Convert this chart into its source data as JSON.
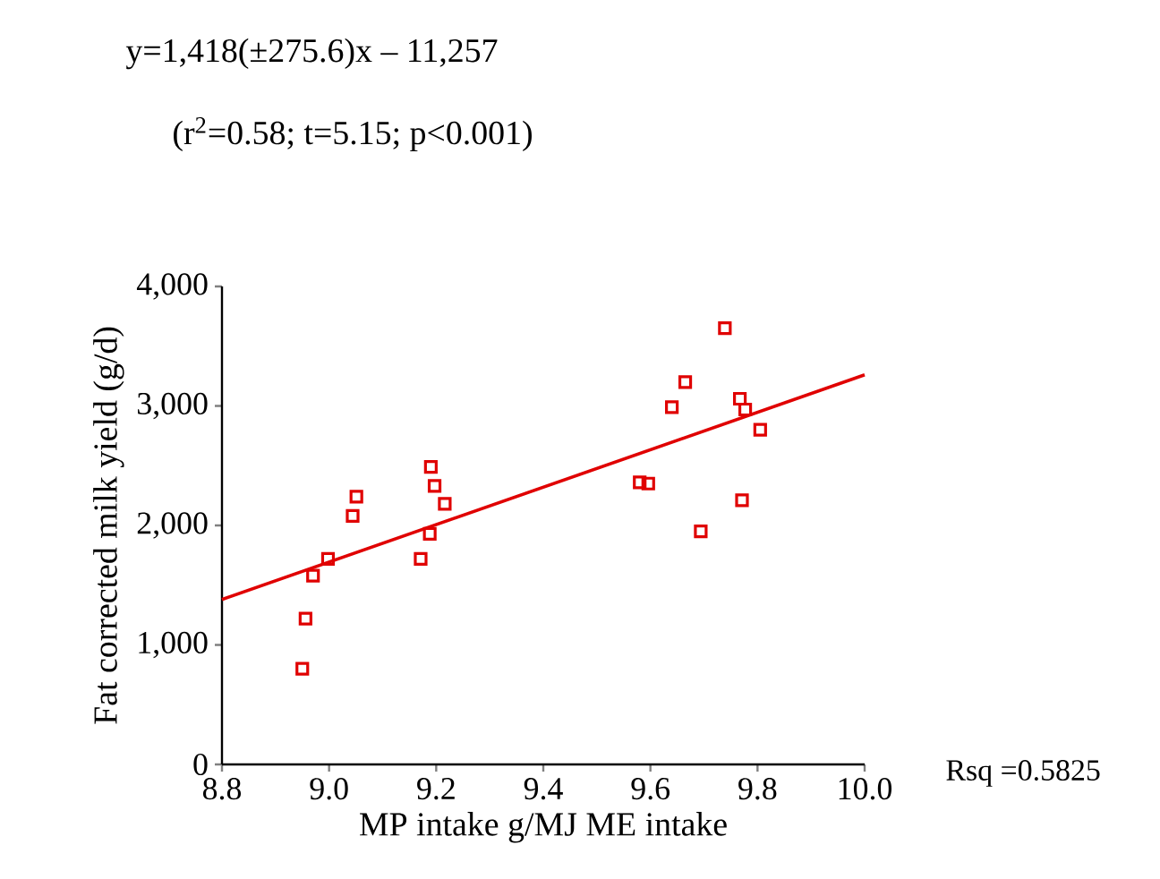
{
  "chart_data": {
    "type": "scatter",
    "xlabel": "MP intake g/MJ ME intake",
    "ylabel": "Fat corrected milk yield (g/d)",
    "annotations": [
      "y=1,418(±275.6)x – 11,257",
      "(r$^{2}$=0.58; t=5.15; p<0.001)",
      "Rsq =0.5825"
    ],
    "xlim": [
      8.8,
      10.0
    ],
    "ylim": [
      0,
      4000
    ],
    "xticks": [
      {
        "value": 8.8,
        "label": "8.8"
      },
      {
        "value": 9.0,
        "label": "9.0"
      },
      {
        "value": 9.2,
        "label": "9.2"
      },
      {
        "value": 9.4,
        "label": "9.4"
      },
      {
        "value": 9.6,
        "label": "9.6"
      },
      {
        "value": 9.8,
        "label": "9.8"
      },
      {
        "value": 10.0,
        "label": "10.0"
      }
    ],
    "yticks": [
      0,
      {
        "value": 1000,
        "label": "1,000"
      },
      {
        "value": 2000,
        "label": "2,000"
      },
      {
        "value": 3000,
        "label": "3,000"
      },
      {
        "value": 4000,
        "label": "4,000"
      }
    ],
    "grid": false,
    "series": [
      {
        "marker": "square",
        "color": "#e00000",
        "x": [
          8.95,
          8.956,
          8.97,
          8.998,
          9.044,
          9.051,
          9.171,
          9.188,
          9.19,
          9.197,
          9.216,
          9.58,
          9.596,
          9.64,
          9.665,
          9.694,
          9.739,
          9.767,
          9.777,
          9.771,
          9.805
        ],
        "values": [
          800,
          1220,
          1580,
          1720,
          2080,
          2240,
          1720,
          1930,
          2490,
          2330,
          2180,
          2360,
          2350,
          2990,
          3200,
          1950,
          3650,
          3060,
          2970,
          2210,
          2800
        ]
      },
      {
        "type": "line",
        "color": "#e00000",
        "x": [
          8.8,
          10.0
        ],
        "values": [
          1380,
          3260
        ]
      }
    ]
  }
}
